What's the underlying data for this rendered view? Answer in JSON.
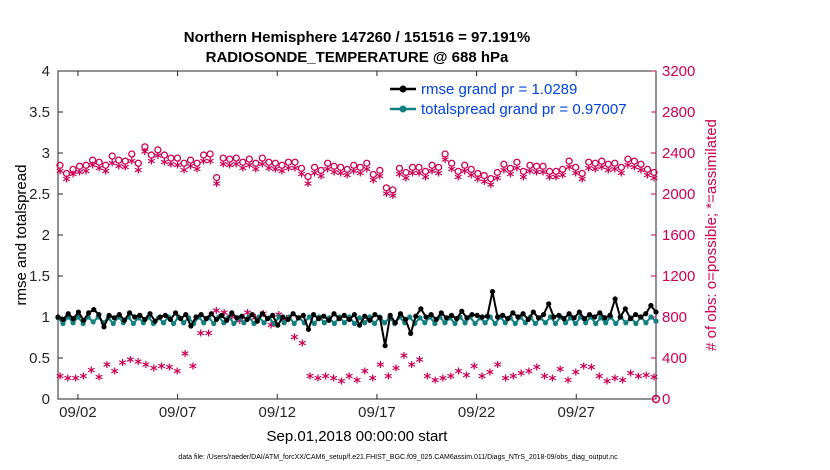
{
  "chart_data": {
    "type": "line",
    "title_line1": "Northern Hemisphere 147260 / 151516 = 97.191%",
    "title_line2": "RADIOSONDE_TEMPERATURE @ 688 hPa",
    "xlabel": "Sep.01,2018 00:00:00 start",
    "ylabel_left": "rmse and totalspread",
    "ylabel_right": "# of obs: o=possible; *=assimilated",
    "footnote": "data file: /Users/raeder/DAI/ATM_forcXX/CAM6_setup/f.e21.FHIST_BGC.f09_025.CAM6assim.011/Diags_NTrS_2018-09/obs_diag_output.nc",
    "x_start_day": 1,
    "x_end_day": 31,
    "x_ticks": [
      {
        "day": 2,
        "label": "09/02"
      },
      {
        "day": 7,
        "label": "09/07"
      },
      {
        "day": 12,
        "label": "09/12"
      },
      {
        "day": 17,
        "label": "09/17"
      },
      {
        "day": 22,
        "label": "09/22"
      },
      {
        "day": 27,
        "label": "09/27"
      }
    ],
    "ylim_left": [
      0,
      4
    ],
    "y_ticks_left": [
      "0",
      "0.5",
      "1",
      "1.5",
      "2",
      "2.5",
      "3",
      "3.5",
      "4"
    ],
    "ylim_right": [
      0,
      3200
    ],
    "y_ticks_right": [
      "0",
      "400",
      "800",
      "1200",
      "1600",
      "2000",
      "2400",
      "2800",
      "3200"
    ],
    "legend": {
      "position": "top-right",
      "entries": [
        "rmse grand pr = 1.0289",
        "totalspread grand pr = 0.97007"
      ]
    },
    "colors": {
      "rmse": "#000000",
      "totalspread": "#138080",
      "obs": "#cc0055",
      "legend_text": "#0044dd"
    },
    "rmse": [
      1.0,
      0.97,
      1.04,
      0.98,
      1.06,
      0.96,
      1.05,
      1.09,
      1.03,
      0.88,
      1.02,
      0.99,
      1.03,
      0.96,
      1.05,
      1.0,
      1.02,
      0.97,
      1.04,
      0.95,
      1.0,
      1.02,
      0.97,
      1.05,
      0.98,
      1.03,
      0.89,
      1.0,
      1.03,
      0.98,
      1.04,
      0.97,
      1.02,
      0.96,
      1.05,
      0.99,
      1.01,
      0.97,
      1.03,
      0.95,
      1.04,
      0.98,
      1.02,
      0.9,
      1.0,
      0.97,
      1.04,
      0.99,
      1.02,
      0.85,
      1.03,
      0.98,
      1.01,
      0.96,
      1.04,
      0.98,
      1.02,
      0.97,
      1.03,
      0.9,
      1.01,
      0.96,
      1.03,
      0.99,
      0.65,
      1.02,
      0.93,
      1.04,
      0.97,
      0.8,
      1.01,
      1.1,
      1.0,
      1.03,
      0.97,
      1.05,
      0.99,
      1.02,
      0.98,
      1.07,
      0.99,
      1.03,
      1.02,
      1.0,
      1.01,
      1.31,
      1.0,
      1.02,
      0.98,
      1.05,
      1.0,
      1.04,
      0.97,
      1.06,
      0.99,
      1.03,
      1.16,
      1.0,
      1.02,
      0.98,
      1.04,
      0.99,
      1.06,
      0.98,
      1.03,
      1.0,
      1.05,
      0.99,
      1.02,
      1.22,
      1.0,
      1.1,
      0.98,
      1.03,
      1.0,
      1.04,
      1.14,
      1.06
    ],
    "totalspread": [
      0.99,
      0.92,
      1.0,
      0.93,
      1.0,
      0.92,
      1.0,
      0.94,
      1.0,
      0.93,
      0.99,
      0.92,
      1.0,
      0.93,
      1.0,
      0.92,
      0.99,
      0.93,
      1.0,
      0.92,
      0.99,
      0.93,
      1.0,
      0.92,
      1.0,
      0.93,
      0.99,
      0.92,
      1.0,
      0.93,
      0.99,
      0.92,
      1.0,
      0.93,
      1.0,
      0.92,
      0.99,
      0.93,
      1.0,
      0.92,
      1.0,
      0.93,
      0.99,
      0.92,
      1.0,
      0.93,
      1.0,
      0.92,
      0.99,
      0.93,
      1.0,
      0.92,
      1.0,
      0.93,
      0.99,
      0.92,
      1.0,
      0.93,
      1.0,
      0.92,
      0.99,
      0.93,
      1.0,
      0.92,
      1.0,
      0.93,
      0.99,
      0.92,
      1.0,
      0.93,
      1.0,
      0.92,
      0.99,
      0.93,
      1.0,
      0.92,
      1.0,
      0.93,
      0.99,
      0.92,
      1.0,
      0.93,
      1.0,
      0.92,
      0.99,
      0.93,
      1.0,
      0.92,
      1.0,
      0.93,
      0.99,
      0.92,
      1.0,
      0.93,
      1.0,
      0.92,
      0.99,
      0.93,
      1.0,
      0.92,
      1.0,
      0.93,
      0.99,
      0.92,
      1.0,
      0.93,
      1.0,
      0.92,
      0.99,
      0.93,
      1.0,
      0.92,
      1.0,
      0.93,
      0.99,
      0.92,
      1.0,
      0.93,
      1.0,
      0.95
    ],
    "obs_possible": [
      2280,
      2200,
      2240,
      2270,
      2280,
      2330,
      2310,
      2280,
      2370,
      2330,
      2320,
      2390,
      2300,
      2460,
      2380,
      2430,
      2380,
      2350,
      2350,
      2300,
      2330,
      2300,
      2380,
      2390,
      2160,
      2350,
      2340,
      2350,
      2310,
      2340,
      2300,
      2350,
      2310,
      2300,
      2280,
      2310,
      2310,
      2250,
      2170,
      2260,
      2230,
      2300,
      2270,
      2260,
      2240,
      2280,
      2260,
      2300,
      2190,
      2230,
      2060,
      2040,
      2250,
      2210,
      2260,
      2260,
      2220,
      2280,
      2260,
      2390,
      2300,
      2220,
      2280,
      2240,
      2200,
      2180,
      2150,
      2210,
      2290,
      2250,
      2310,
      2220,
      2280,
      2270,
      2270,
      2220,
      2220,
      2240,
      2320,
      2260,
      2200,
      2310,
      2300,
      2320,
      2290,
      2300,
      2260,
      2340,
      2320,
      2290,
      2240,
      2210
    ],
    "obs_assimilated": [
      2200,
      2120,
      2170,
      2190,
      2200,
      2260,
      2230,
      2200,
      2280,
      2250,
      2240,
      2300,
      2210,
      2390,
      2300,
      2350,
      2290,
      2270,
      2260,
      2210,
      2250,
      2220,
      2300,
      2300,
      2080,
      2270,
      2260,
      2270,
      2230,
      2260,
      2220,
      2270,
      2230,
      2220,
      2200,
      2230,
      2230,
      2170,
      2080,
      2180,
      2150,
      2220,
      2190,
      2180,
      2160,
      2200,
      2180,
      2220,
      2110,
      2150,
      1980,
      1960,
      2170,
      2130,
      2180,
      2180,
      2140,
      2200,
      2180,
      2310,
      2220,
      2140,
      2200,
      2160,
      2120,
      2100,
      2070,
      2130,
      2210,
      2170,
      2230,
      2140,
      2200,
      2190,
      2190,
      2140,
      2140,
      2160,
      2240,
      2180,
      2120,
      2230,
      2220,
      2240,
      2210,
      2220,
      2180,
      2260,
      2240,
      2210,
      2160,
      2130
    ],
    "obs_low_assimilated": [
      200,
      180,
      180,
      200,
      260,
      190,
      310,
      250,
      330,
      360,
      340,
      310,
      280,
      300,
      290,
      250,
      420,
      300,
      620,
      620,
      840,
      820,
      780,
      740,
      820,
      770,
      810,
      700,
      800,
      760,
      580,
      520,
      0,
      0,
      0,
      0,
      0,
      0,
      200,
      180,
      200,
      180,
      150,
      200,
      160,
      250,
      180,
      310,
      200,
      280,
      400,
      310,
      360,
      200,
      160,
      180,
      200,
      250,
      210,
      300,
      200,
      240,
      310,
      180,
      200,
      230,
      250,
      290,
      200,
      180,
      270,
      160,
      240,
      300,
      290,
      200,
      150,
      180,
      160,
      230,
      200,
      210,
      190,
      0
    ]
  }
}
